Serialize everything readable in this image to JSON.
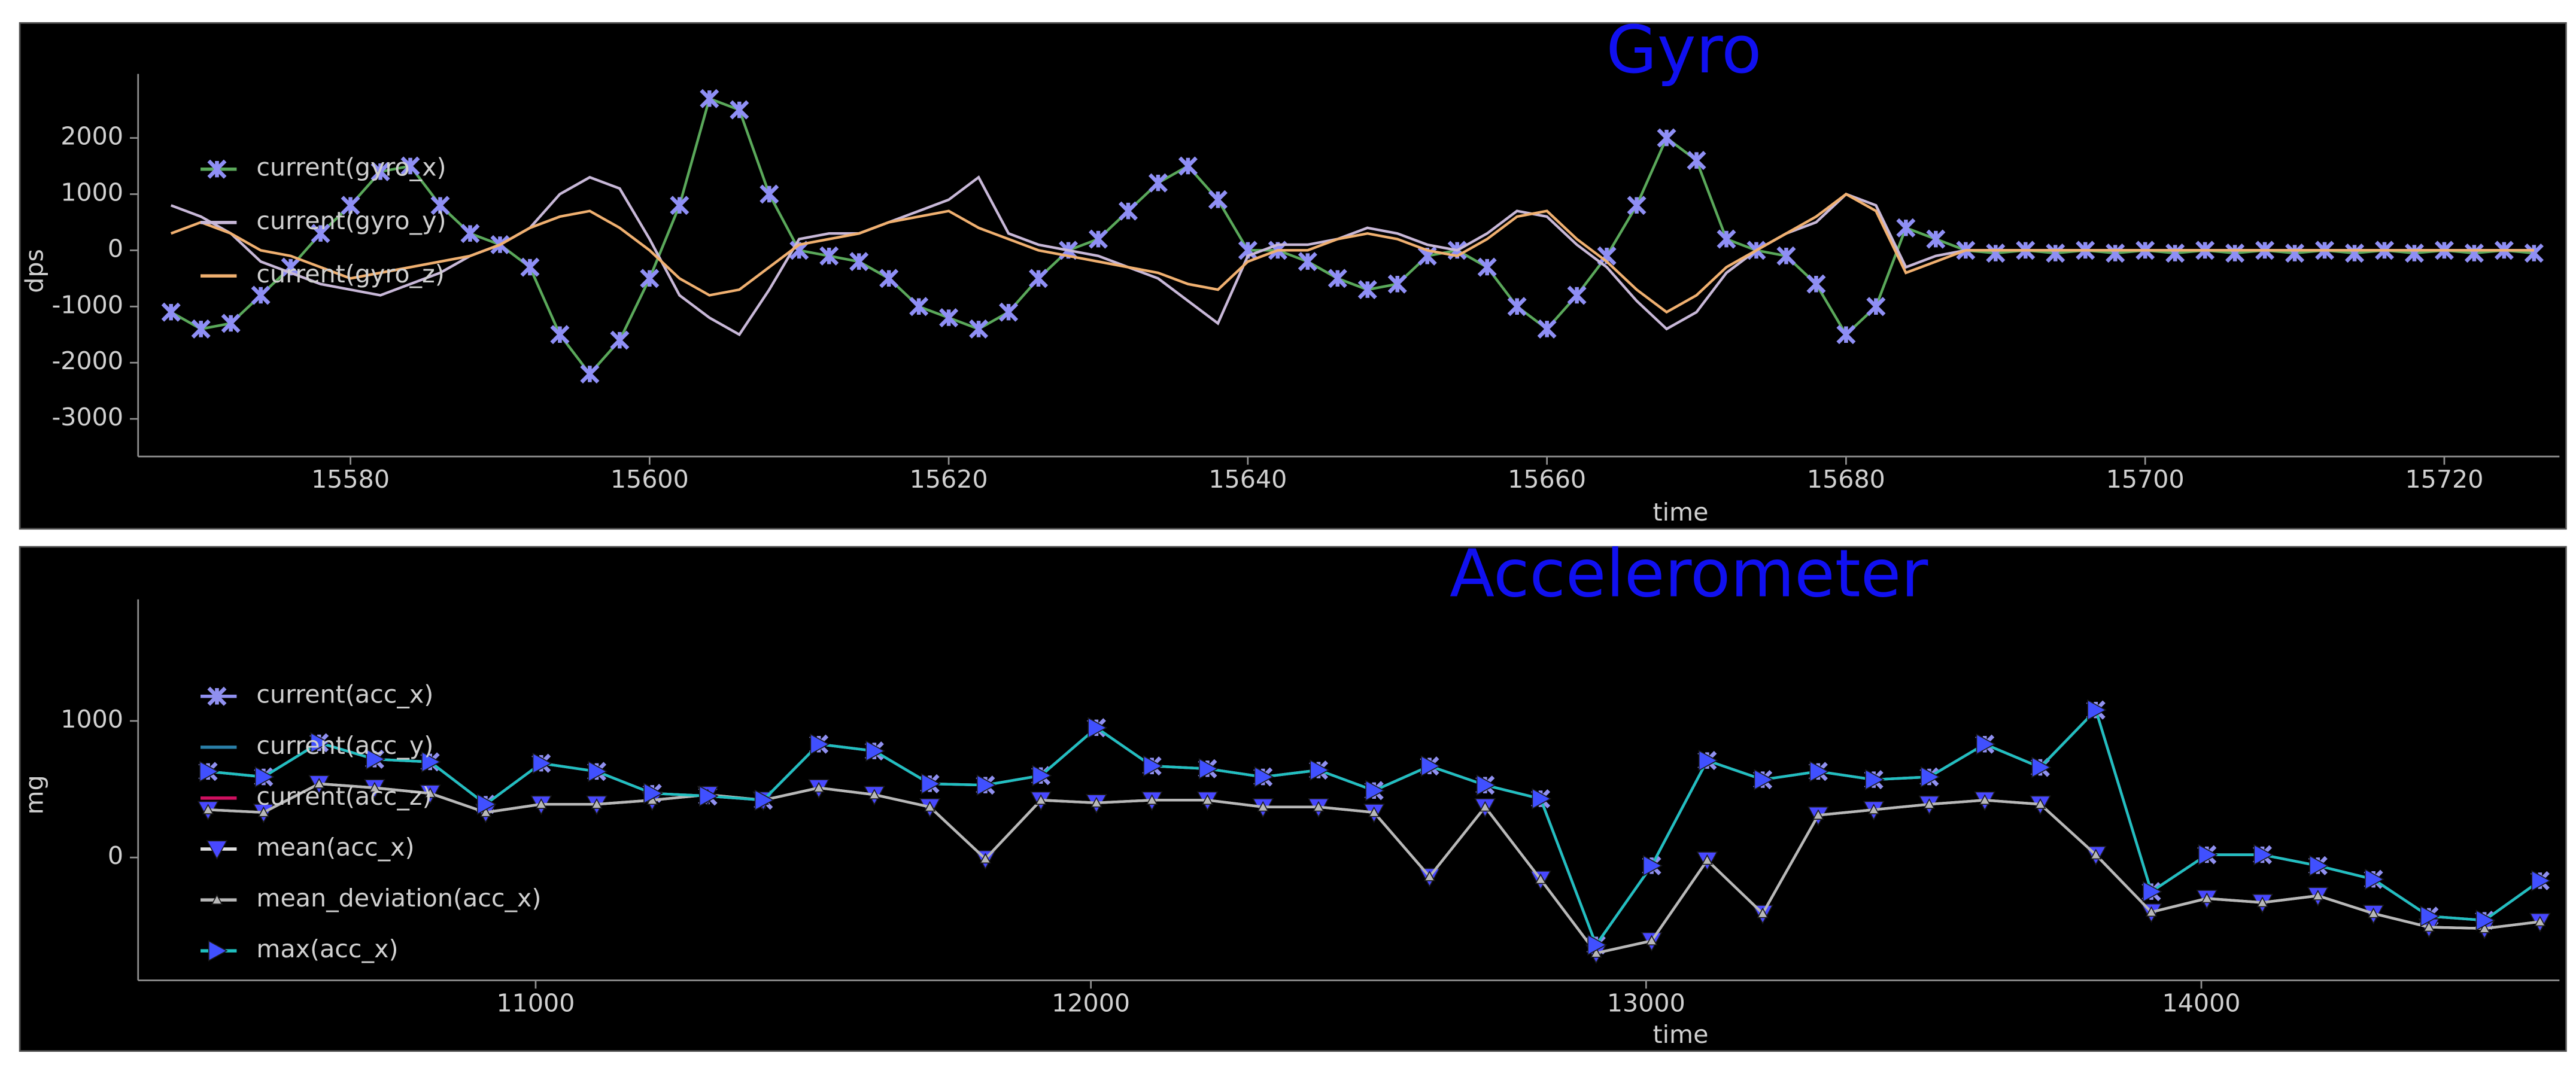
{
  "chart_data": [
    {
      "type": "line",
      "title": "Gyro",
      "x_label": "time",
      "y_label": "dps",
      "xlim": [
        15565.8,
        15727.7
      ],
      "xticks": [
        15580,
        15600,
        15620,
        15640,
        15660,
        15680,
        15700,
        15720
      ],
      "ylim": [
        -3670,
        3140
      ],
      "yticks": [
        -3000,
        -2000,
        -1000,
        0,
        1000,
        2000
      ],
      "x": [
        15568,
        15570,
        15572,
        15574,
        15576,
        15578,
        15580,
        15582,
        15584,
        15586,
        15588,
        15590,
        15592,
        15594,
        15596,
        15598,
        15600,
        15602,
        15604,
        15606,
        15608,
        15610,
        15612,
        15614,
        15616,
        15618,
        15620,
        15622,
        15624,
        15626,
        15628,
        15630,
        15632,
        15634,
        15636,
        15638,
        15640,
        15642,
        15644,
        15646,
        15648,
        15650,
        15652,
        15654,
        15656,
        15658,
        15660,
        15662,
        15664,
        15666,
        15668,
        15670,
        15672,
        15674,
        15676,
        15678,
        15680,
        15682,
        15684,
        15686,
        15688,
        15690,
        15692,
        15694,
        15696,
        15698,
        15700,
        15702,
        15704,
        15706,
        15708,
        15710,
        15712,
        15714,
        15716,
        15718,
        15720,
        15722,
        15724,
        15726
      ],
      "series": [
        {
          "name": "current(gyro_x)",
          "color": "#5aa85a",
          "marker": "x",
          "marker_color": "#8f8ff5",
          "values": [
            -1100,
            -1400,
            -1300,
            -800,
            -300,
            300,
            800,
            1400,
            1500,
            800,
            300,
            100,
            -300,
            -1500,
            -2200,
            -1600,
            -500,
            800,
            2700,
            2500,
            1000,
            0,
            -100,
            -200,
            -500,
            -1000,
            -1200,
            -1400,
            -1100,
            -500,
            0,
            200,
            700,
            1200,
            1500,
            900,
            0,
            0,
            -200,
            -500,
            -700,
            -600,
            -100,
            0,
            -300,
            -1000,
            -1400,
            -800,
            -100,
            800,
            2000,
            1600,
            200,
            0,
            -100,
            -600,
            -1500,
            -1000,
            400,
            200,
            0,
            -50,
            0,
            -50,
            0,
            -50,
            0,
            -50,
            0,
            -50,
            0,
            -50,
            0,
            -50,
            0,
            -50,
            0,
            -50,
            0,
            -50
          ]
        },
        {
          "name": "current(gyro_y)",
          "color": "#c8b8d8",
          "marker": null,
          "values": [
            800,
            600,
            300,
            -200,
            -400,
            -600,
            -700,
            -800,
            -600,
            -400,
            -100,
            100,
            400,
            1000,
            1300,
            1100,
            200,
            -800,
            -1200,
            -1500,
            -700,
            200,
            300,
            300,
            500,
            700,
            900,
            1300,
            300,
            100,
            0,
            -100,
            -300,
            -500,
            -900,
            -1300,
            -100,
            100,
            100,
            200,
            400,
            300,
            100,
            0,
            300,
            700,
            600,
            100,
            -300,
            -900,
            -1400,
            -1100,
            -400,
            0,
            300,
            500,
            1000,
            800,
            -300,
            -100,
            0,
            0,
            0,
            0,
            0,
            0,
            0,
            0,
            0,
            0,
            0,
            0,
            0,
            0,
            0,
            0,
            0,
            0,
            0,
            0
          ]
        },
        {
          "name": "current(gyro_z)",
          "color": "#f0b070",
          "marker": null,
          "values": [
            300,
            500,
            300,
            0,
            -100,
            -300,
            -500,
            -400,
            -300,
            -200,
            -100,
            100,
            400,
            600,
            700,
            400,
            0,
            -500,
            -800,
            -700,
            -300,
            100,
            200,
            300,
            500,
            600,
            700,
            400,
            200,
            0,
            -100,
            -200,
            -300,
            -400,
            -600,
            -700,
            -200,
            0,
            0,
            200,
            300,
            200,
            0,
            -100,
            200,
            600,
            700,
            200,
            -200,
            -700,
            -1100,
            -800,
            -300,
            0,
            300,
            600,
            1000,
            700,
            -400,
            -200,
            0,
            0,
            0,
            0,
            0,
            0,
            0,
            0,
            0,
            0,
            0,
            0,
            0,
            0,
            0,
            0,
            0,
            0,
            0,
            0
          ]
        }
      ]
    },
    {
      "type": "line",
      "title": "Accelerometer",
      "x_label": "time",
      "y_label": "mg",
      "xlim": [
        10284,
        14645
      ],
      "xticks": [
        11000,
        12000,
        13000,
        14000
      ],
      "ylim": [
        -900,
        1890
      ],
      "yticks": [
        0,
        1000
      ],
      "x": [
        10410,
        10510,
        10610,
        10710,
        10810,
        10910,
        11010,
        11110,
        11210,
        11310,
        11410,
        11510,
        11610,
        11710,
        11810,
        11910,
        12010,
        12110,
        12210,
        12310,
        12410,
        12510,
        12610,
        12710,
        12810,
        12910,
        13010,
        13110,
        13210,
        13310,
        13410,
        13510,
        13610,
        13710,
        13810,
        13910,
        14010,
        14110,
        14210,
        14310,
        14410,
        14510,
        14610
      ],
      "series": [
        {
          "name": "current(acc_x)",
          "color": "#9090f0",
          "marker": "x",
          "marker_color": "#9090f0",
          "values": [
            630,
            590,
            840,
            720,
            700,
            390,
            690,
            630,
            470,
            450,
            420,
            830,
            780,
            540,
            530,
            600,
            950,
            670,
            650,
            590,
            640,
            490,
            670,
            530,
            430,
            -640,
            -60,
            710,
            570,
            630,
            570,
            590,
            830,
            660,
            1080,
            -250,
            20,
            20,
            -60,
            -160,
            -430,
            -460,
            -170
          ]
        },
        {
          "name": "current(acc_y)",
          "color": "#2a7fa8",
          "marker": null,
          "values": [
            630,
            590,
            840,
            720,
            700,
            390,
            690,
            630,
            470,
            450,
            420,
            830,
            780,
            540,
            530,
            600,
            950,
            670,
            650,
            590,
            640,
            490,
            670,
            530,
            430,
            -640,
            -60,
            710,
            570,
            630,
            570,
            590,
            830,
            660,
            1080,
            -250,
            20,
            20,
            -60,
            -160,
            -430,
            -460,
            -170
          ]
        },
        {
          "name": "current(acc_z)",
          "color": "#d01060",
          "marker": null,
          "values": [
            630,
            590,
            840,
            720,
            700,
            390,
            690,
            630,
            470,
            450,
            420,
            830,
            780,
            540,
            530,
            600,
            950,
            670,
            650,
            590,
            640,
            490,
            670,
            530,
            430,
            -640,
            -60,
            710,
            570,
            630,
            570,
            590,
            830,
            660,
            1080,
            -250,
            20,
            20,
            -60,
            -160,
            -430,
            -460,
            -170
          ]
        },
        {
          "name": "mean(acc_x)",
          "color": "#e0e0e0",
          "marker": "tri-down",
          "marker_color": "#4848ff",
          "values": [
            350,
            330,
            540,
            510,
            470,
            330,
            390,
            390,
            420,
            460,
            420,
            510,
            460,
            370,
            -10,
            420,
            400,
            420,
            420,
            370,
            370,
            330,
            -140,
            370,
            -160,
            -700,
            -610,
            -20,
            -410,
            310,
            350,
            390,
            420,
            390,
            20,
            -400,
            -300,
            -330,
            -280,
            -410,
            -510,
            -520,
            -470
          ]
        },
        {
          "name": "mean_deviation(acc_x)",
          "color": "#b8b8b8",
          "marker": "tri-up",
          "marker_color": "#b8b8b8",
          "values": [
            350,
            330,
            540,
            510,
            470,
            330,
            390,
            390,
            420,
            460,
            420,
            510,
            460,
            370,
            -10,
            420,
            400,
            420,
            420,
            370,
            370,
            330,
            -140,
            370,
            -160,
            -700,
            -610,
            -20,
            -410,
            310,
            350,
            390,
            420,
            390,
            20,
            -400,
            -300,
            -330,
            -280,
            -410,
            -510,
            -520,
            -470
          ]
        },
        {
          "name": "max(acc_x)",
          "color": "#20c0c0",
          "marker": "tri-right",
          "marker_color": "#4050ff",
          "values": [
            630,
            590,
            840,
            720,
            700,
            390,
            690,
            630,
            470,
            450,
            420,
            830,
            780,
            540,
            530,
            600,
            950,
            670,
            650,
            590,
            640,
            490,
            670,
            530,
            430,
            -640,
            -60,
            710,
            570,
            630,
            570,
            590,
            830,
            660,
            1080,
            -250,
            20,
            20,
            -60,
            -160,
            -430,
            -460,
            -170
          ]
        }
      ]
    }
  ]
}
